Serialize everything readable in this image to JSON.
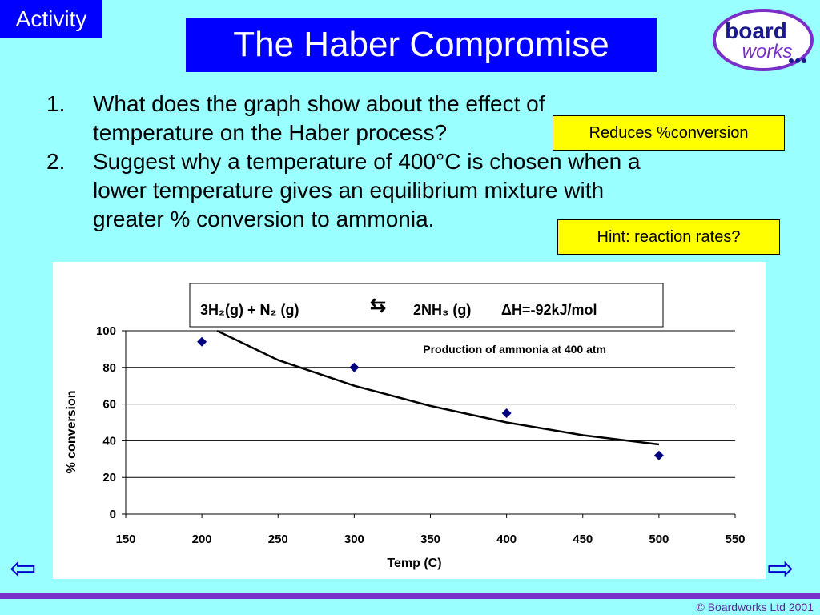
{
  "badge": "Activity",
  "title": "The Haber Compromise",
  "logo": {
    "line1": "board",
    "line2": "works"
  },
  "questions": [
    {
      "num": "1.",
      "lines": [
        "What does the graph show about the effect of",
        "temperature on the Haber process?"
      ]
    },
    {
      "num": "2.",
      "lines": [
        "Suggest why a temperature of 400°C is chosen when a",
        "lower temperature gives an equilibrium mixture with",
        "greater % conversion to ammonia."
      ]
    }
  ],
  "answers": {
    "a1": "Reduces %conversion",
    "a2": "Hint: reaction rates?"
  },
  "equation": {
    "reactants": "3H₂(g) +  N₂ (g)",
    "arrow": "⇆",
    "product": "2NH₃ (g)",
    "enthalpy": "ΔH=-92kJ/mol"
  },
  "chart_data": {
    "type": "scatter",
    "annotation": "Production of ammonia  at 400 atm",
    "xlabel": "Temp (C)",
    "ylabel": "% conversion",
    "xlim": [
      150,
      550
    ],
    "ylim": [
      0,
      100
    ],
    "xticks": [
      150,
      200,
      250,
      300,
      350,
      400,
      450,
      500,
      550
    ],
    "yticks": [
      0,
      20,
      40,
      60,
      80,
      100
    ],
    "grid": "horizontal",
    "points": [
      {
        "x": 200,
        "y": 94
      },
      {
        "x": 300,
        "y": 80
      },
      {
        "x": 400,
        "y": 55
      },
      {
        "x": 500,
        "y": 32
      }
    ],
    "trend": [
      {
        "x": 210,
        "y": 100
      },
      {
        "x": 250,
        "y": 84
      },
      {
        "x": 300,
        "y": 70
      },
      {
        "x": 350,
        "y": 59
      },
      {
        "x": 400,
        "y": 50
      },
      {
        "x": 450,
        "y": 43
      },
      {
        "x": 500,
        "y": 38
      }
    ],
    "colors": {
      "points": "#00007F",
      "trend": "#000000",
      "grid": "#000000"
    }
  },
  "nav": {
    "back": "⇦",
    "forward": "⇨"
  },
  "footer": "© Boardworks Ltd 2001"
}
